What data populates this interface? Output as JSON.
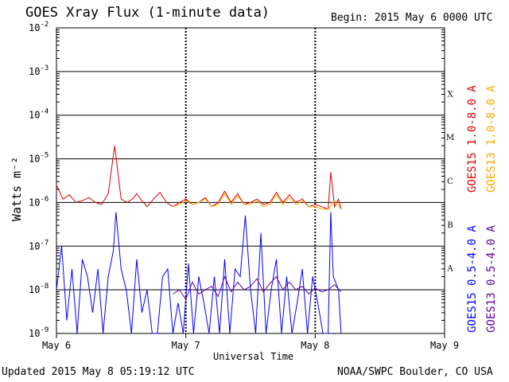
{
  "header": {
    "title": "GOES Xray Flux (1-minute data)",
    "begin": "Begin:  2015 May 6 0000 UTC"
  },
  "footer": {
    "updated": "Updated 2015 May  8 05:19:12 UTC",
    "credit": "NOAA/SWPC Boulder, CO USA"
  },
  "chart_data": {
    "type": "line",
    "title": "GOES Xray Flux (1-minute data)",
    "xlabel": "Universal Time",
    "ylabel": "Watts m⁻²",
    "yscale": "log",
    "ylim": [
      1e-09,
      0.01
    ],
    "xlim_days": [
      0,
      3
    ],
    "x_ticks": [
      "May 6",
      "May 7",
      "May 8",
      "May 9"
    ],
    "y_ticks": [
      {
        "mantissa": "10",
        "exp": "-9"
      },
      {
        "mantissa": "10",
        "exp": "-8"
      },
      {
        "mantissa": "10",
        "exp": "-7"
      },
      {
        "mantissa": "10",
        "exp": "-6"
      },
      {
        "mantissa": "10",
        "exp": "-5"
      },
      {
        "mantissa": "10",
        "exp": "-4"
      },
      {
        "mantissa": "10",
        "exp": "-3"
      },
      {
        "mantissa": "10",
        "exp": "-2"
      }
    ],
    "flare_classes": [
      {
        "label": "A",
        "log": -7.5
      },
      {
        "label": "B",
        "log": -6.5
      },
      {
        "label": "C",
        "log": -5.5
      },
      {
        "label": "M",
        "log": -4.5
      },
      {
        "label": "X",
        "log": -3.5
      }
    ],
    "grid": true,
    "series": [
      {
        "name": "GOES15 1.0-8.0 A",
        "color": "#e00000",
        "x": [
          0.0,
          0.05,
          0.1,
          0.15,
          0.2,
          0.25,
          0.3,
          0.35,
          0.4,
          0.45,
          0.5,
          0.55,
          0.6,
          0.62,
          0.65,
          0.7,
          0.75,
          0.8,
          0.85,
          0.9,
          0.95,
          1.0,
          1.05,
          1.1,
          1.15,
          1.2,
          1.25,
          1.3,
          1.35,
          1.4,
          1.45,
          1.5,
          1.55,
          1.6,
          1.65,
          1.7,
          1.75,
          1.8,
          1.85,
          1.9,
          1.95,
          2.0,
          2.05,
          2.1,
          2.12,
          2.15,
          2.18,
          2.2
        ],
        "y": [
          2.5e-06,
          1.2e-06,
          1.5e-06,
          1e-06,
          1.1e-06,
          1.3e-06,
          1e-06,
          9e-07,
          1.6e-06,
          2e-05,
          1.2e-06,
          1e-06,
          1.3e-06,
          1.6e-06,
          1.2e-06,
          8e-07,
          1.2e-06,
          1.7e-06,
          1e-06,
          8e-07,
          1e-06,
          1.2e-06,
          9e-07,
          1e-06,
          1.3e-06,
          8e-07,
          1e-06,
          1.8e-06,
          1e-06,
          1.6e-06,
          9e-07,
          1e-06,
          1.2e-06,
          9e-07,
          1e-06,
          1.7e-06,
          1e-06,
          1.5e-06,
          1e-06,
          1.2e-06,
          8e-07,
          9e-07,
          8e-07,
          7e-07,
          5e-06,
          8e-07,
          1.2e-06,
          7e-07
        ]
      },
      {
        "name": "GOES13 1.0-8.0 A",
        "color": "#ffaa00",
        "x": [
          0.9,
          0.95,
          1.0,
          1.05,
          1.1,
          1.15,
          1.2,
          1.25,
          1.3,
          1.35,
          1.4,
          1.45,
          1.5,
          1.55,
          1.6,
          1.65,
          1.7,
          1.75,
          1.8,
          1.85,
          1.9,
          1.95,
          2.0,
          2.05,
          2.1,
          2.15,
          2.2
        ],
        "y": [
          8e-07,
          9e-07,
          1.1e-06,
          9e-07,
          1e-06,
          1.2e-06,
          8e-07,
          9e-07,
          1.6e-06,
          9e-07,
          1.4e-06,
          9e-07,
          9e-07,
          1.1e-06,
          8e-07,
          9e-07,
          1.5e-06,
          9e-07,
          1.3e-06,
          9e-07,
          1.1e-06,
          8e-07,
          8e-07,
          7e-07,
          7e-07,
          1.1e-06,
          7e-07
        ]
      },
      {
        "name": "GOES15 0.5-4.0 A",
        "color": "#0000ff",
        "x": [
          0.0,
          0.04,
          0.08,
          0.12,
          0.16,
          0.2,
          0.24,
          0.28,
          0.32,
          0.36,
          0.4,
          0.44,
          0.46,
          0.5,
          0.54,
          0.58,
          0.62,
          0.66,
          0.7,
          0.74,
          0.78,
          0.82,
          0.86,
          0.9,
          0.94,
          0.98,
          1.02,
          1.06,
          1.1,
          1.14,
          1.18,
          1.22,
          1.26,
          1.3,
          1.34,
          1.38,
          1.42,
          1.46,
          1.5,
          1.54,
          1.58,
          1.62,
          1.66,
          1.7,
          1.74,
          1.78,
          1.82,
          1.86,
          1.9,
          1.94,
          1.98,
          2.02,
          2.06,
          2.1,
          2.12,
          2.14,
          2.18,
          2.2
        ],
        "y": [
          1e-08,
          1e-07,
          2e-09,
          3e-08,
          1e-09,
          5e-08,
          2e-08,
          3e-09,
          3e-08,
          1e-09,
          2e-08,
          8e-08,
          6e-07,
          3e-08,
          1e-08,
          1e-09,
          5e-08,
          3e-09,
          1e-08,
          1e-09,
          1e-09,
          2e-08,
          3e-08,
          1e-09,
          5e-09,
          1e-09,
          4e-08,
          1e-09,
          2e-08,
          5e-09,
          1e-09,
          2e-08,
          1e-09,
          5e-08,
          1e-09,
          3e-08,
          2e-08,
          5e-07,
          1e-08,
          1e-09,
          2e-07,
          1e-09,
          1e-08,
          5e-08,
          1e-09,
          2e-08,
          1e-09,
          5e-09,
          3e-08,
          1e-09,
          2e-08,
          5e-09,
          1e-09,
          1e-09,
          6e-07,
          2e-08,
          1e-08,
          1e-09
        ]
      },
      {
        "name": "GOES13 0.5-4.0 A",
        "color": "#6600aa",
        "x": [
          0.9,
          0.95,
          1.0,
          1.05,
          1.1,
          1.15,
          1.2,
          1.25,
          1.3,
          1.35,
          1.4,
          1.45,
          1.5,
          1.55,
          1.6,
          1.65,
          1.7,
          1.75,
          1.8,
          1.85,
          1.9,
          1.95,
          2.0,
          2.05,
          2.1,
          2.15,
          2.2
        ],
        "y": [
          8e-09,
          1e-08,
          6e-09,
          1.5e-08,
          8e-09,
          1e-08,
          1.2e-08,
          7e-09,
          2e-08,
          9e-09,
          1.5e-08,
          1e-08,
          1.2e-08,
          1.8e-08,
          9e-09,
          1.4e-08,
          2e-08,
          1e-08,
          1.5e-08,
          1e-08,
          1.2e-08,
          8e-09,
          1.1e-08,
          9e-09,
          1e-08,
          1.3e-08,
          9e-09
        ]
      }
    ]
  }
}
